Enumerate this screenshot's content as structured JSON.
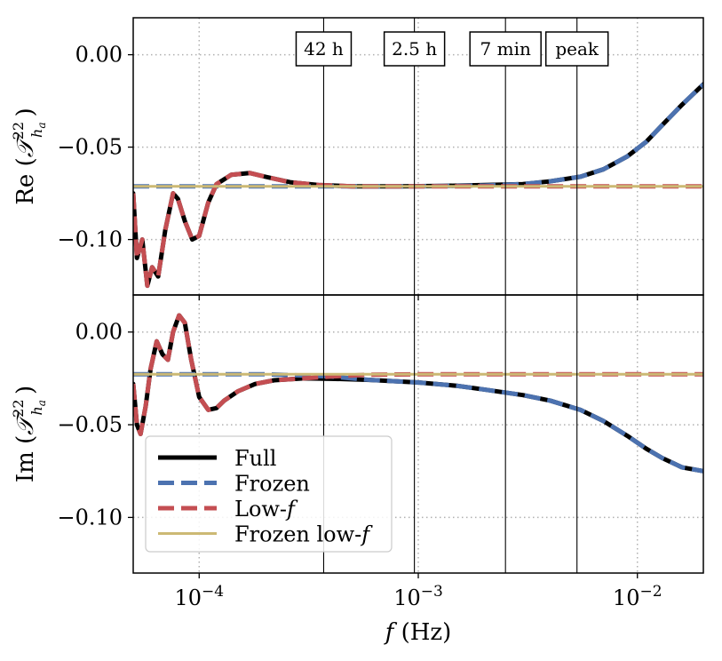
{
  "chart_data": [
    {
      "type": "line",
      "panel": "top",
      "ylabel": "Re (T_{h_a}^{22})",
      "ylabel_main": "Re",
      "ylabel_symbol": "𝒯",
      "ylabel_sup": "22",
      "ylabel_sub": "h",
      "ylabel_subsub": "a",
      "xscale": "log",
      "xlim": [
        5e-05,
        0.02
      ],
      "ylim": [
        -0.13,
        0.02
      ],
      "yticks": [
        0.0,
        -0.05,
        -0.1
      ],
      "ytick_labels": [
        "0.00",
        "−0.05",
        "−0.10"
      ],
      "grid": true,
      "series": [
        {
          "name": "Full",
          "color": "#000000",
          "style": "solid",
          "x": [
            5e-05,
            5.2e-05,
            5.5e-05,
            5.8e-05,
            6.1e-05,
            6.5e-05,
            7e-05,
            7.6e-05,
            8e-05,
            8.6e-05,
            9.3e-05,
            0.0001,
            0.00011,
            0.00012,
            0.00014,
            0.00017,
            0.0002,
            0.00026,
            0.00035,
            0.0005,
            0.0008,
            0.0013,
            0.002,
            0.003,
            0.004,
            0.0055,
            0.007,
            0.009,
            0.011,
            0.013,
            0.016,
            0.02
          ],
          "y": [
            -0.075,
            -0.11,
            -0.1,
            -0.125,
            -0.115,
            -0.12,
            -0.095,
            -0.075,
            -0.078,
            -0.09,
            -0.1,
            -0.098,
            -0.08,
            -0.07,
            -0.065,
            -0.064,
            -0.066,
            -0.069,
            -0.0705,
            -0.0712,
            -0.0712,
            -0.071,
            -0.0705,
            -0.07,
            -0.0685,
            -0.066,
            -0.062,
            -0.055,
            -0.047,
            -0.038,
            -0.027,
            -0.016
          ]
        },
        {
          "name": "Frozen",
          "color": "#4c72b0",
          "style": "dashed",
          "x": [
            5e-05,
            0.0002,
            0.0005,
            0.001,
            0.002,
            0.003,
            0.004,
            0.0055,
            0.007,
            0.009,
            0.011,
            0.013,
            0.016,
            0.02
          ],
          "y": [
            -0.0712,
            -0.0712,
            -0.0712,
            -0.0712,
            -0.0708,
            -0.07,
            -0.0685,
            -0.066,
            -0.062,
            -0.055,
            -0.047,
            -0.038,
            -0.027,
            -0.016
          ]
        },
        {
          "name": "Low-f",
          "color": "#c44e52",
          "style": "dashed",
          "x": [
            5e-05,
            5.2e-05,
            5.5e-05,
            5.8e-05,
            6.1e-05,
            6.5e-05,
            7e-05,
            7.6e-05,
            8e-05,
            8.6e-05,
            9.3e-05,
            0.0001,
            0.00011,
            0.00012,
            0.00014,
            0.00017,
            0.0002,
            0.00026,
            0.00035,
            0.0005,
            0.0008,
            0.0013,
            0.002,
            0.005,
            0.01,
            0.02
          ],
          "y": [
            -0.075,
            -0.11,
            -0.1,
            -0.125,
            -0.115,
            -0.12,
            -0.095,
            -0.075,
            -0.078,
            -0.09,
            -0.1,
            -0.098,
            -0.08,
            -0.07,
            -0.065,
            -0.064,
            -0.066,
            -0.069,
            -0.0705,
            -0.0712,
            -0.0712,
            -0.0712,
            -0.0712,
            -0.0712,
            -0.0712,
            -0.0712
          ]
        },
        {
          "name": "Frozen low-f",
          "color": "#ccb974",
          "style": "solid",
          "x": [
            5e-05,
            0.02
          ],
          "y": [
            -0.0712,
            -0.0712
          ]
        }
      ]
    },
    {
      "type": "line",
      "panel": "bottom",
      "ylabel": "Im (T_{h_a}^{22})",
      "ylabel_main": "Im",
      "ylabel_symbol": "𝒯",
      "ylabel_sup": "22",
      "ylabel_sub": "h",
      "ylabel_subsub": "a",
      "xlabel": "f (Hz)",
      "xlabel_var": "f",
      "xlabel_unit": " (Hz)",
      "xscale": "log",
      "xlim": [
        5e-05,
        0.02
      ],
      "ylim": [
        -0.13,
        0.02
      ],
      "yticks": [
        0.0,
        -0.05,
        -0.1
      ],
      "ytick_labels": [
        "0.00",
        "−0.05",
        "−0.10"
      ],
      "xticks": [
        0.0001,
        0.001,
        0.01
      ],
      "xtick_bases": [
        "10",
        "10",
        "10"
      ],
      "xtick_exponents": [
        "−4",
        "−3",
        "−2"
      ],
      "grid": true,
      "series": [
        {
          "name": "Full",
          "color": "#000000",
          "style": "solid",
          "x": [
            5e-05,
            5.2e-05,
            5.4e-05,
            5.7e-05,
            6e-05,
            6.4e-05,
            6.8e-05,
            7.2e-05,
            7.6e-05,
            8.1e-05,
            8.6e-05,
            9.2e-05,
            0.0001,
            0.00011,
            0.00012,
            0.00013,
            0.00015,
            0.00018,
            0.00022,
            0.0003,
            0.0004,
            0.0006,
            0.001,
            0.0015,
            0.002,
            0.003,
            0.004,
            0.0055,
            0.007,
            0.009,
            0.011,
            0.013,
            0.016,
            0.02
          ],
          "y": [
            -0.028,
            -0.05,
            -0.055,
            -0.04,
            -0.02,
            -0.005,
            -0.012,
            -0.015,
            0.0,
            0.009,
            0.005,
            -0.015,
            -0.035,
            -0.042,
            -0.041,
            -0.037,
            -0.032,
            -0.028,
            -0.026,
            -0.025,
            -0.0252,
            -0.0258,
            -0.0272,
            -0.029,
            -0.031,
            -0.034,
            -0.037,
            -0.042,
            -0.048,
            -0.056,
            -0.063,
            -0.068,
            -0.073,
            -0.075
          ]
        },
        {
          "name": "Frozen",
          "color": "#4c72b0",
          "style": "dashed",
          "x": [
            5e-05,
            0.0002,
            0.0004,
            0.0006,
            0.001,
            0.0015,
            0.002,
            0.003,
            0.004,
            0.0055,
            0.007,
            0.009,
            0.011,
            0.013,
            0.016,
            0.02
          ],
          "y": [
            -0.0228,
            -0.0228,
            -0.024,
            -0.0258,
            -0.0272,
            -0.029,
            -0.031,
            -0.034,
            -0.037,
            -0.042,
            -0.048,
            -0.056,
            -0.063,
            -0.068,
            -0.073,
            -0.075
          ]
        },
        {
          "name": "Low-f",
          "color": "#c44e52",
          "style": "dashed",
          "x": [
            5e-05,
            5.2e-05,
            5.4e-05,
            5.7e-05,
            6e-05,
            6.4e-05,
            6.8e-05,
            7.2e-05,
            7.6e-05,
            8.1e-05,
            8.6e-05,
            9.2e-05,
            0.0001,
            0.00011,
            0.00012,
            0.00013,
            0.00015,
            0.00018,
            0.00022,
            0.0003,
            0.0004,
            0.0006,
            0.001,
            0.002,
            0.005,
            0.01,
            0.02
          ],
          "y": [
            -0.028,
            -0.05,
            -0.055,
            -0.04,
            -0.02,
            -0.005,
            -0.012,
            -0.015,
            0.0,
            0.009,
            0.005,
            -0.015,
            -0.035,
            -0.042,
            -0.041,
            -0.037,
            -0.032,
            -0.028,
            -0.026,
            -0.025,
            -0.024,
            -0.023,
            -0.0228,
            -0.0228,
            -0.0228,
            -0.0228,
            -0.0228
          ]
        },
        {
          "name": "Frozen low-f",
          "color": "#ccb974",
          "style": "solid",
          "x": [
            5e-05,
            0.02
          ],
          "y": [
            -0.0228,
            -0.0228
          ]
        }
      ]
    }
  ],
  "annotations": [
    {
      "label": "42 h",
      "x": 0.00037
    },
    {
      "label": "2.5 h",
      "x": 0.00096
    },
    {
      "label": "7 min",
      "x": 0.0025
    },
    {
      "label": "peak",
      "x": 0.0053
    }
  ],
  "legend": {
    "location": "lower-left",
    "panel": "bottom",
    "entries": [
      {
        "label": "Full",
        "color": "#000000",
        "style": "solid"
      },
      {
        "label": "Frozen",
        "color": "#4c72b0",
        "style": "dashed"
      },
      {
        "label": "Low-f",
        "text": "Low-",
        "italic": "f",
        "color": "#c44e52",
        "style": "dashed"
      },
      {
        "label": "Frozen low-f",
        "text": "Frozen low-",
        "italic": "f",
        "color": "#ccb974",
        "style": "solid"
      }
    ]
  }
}
